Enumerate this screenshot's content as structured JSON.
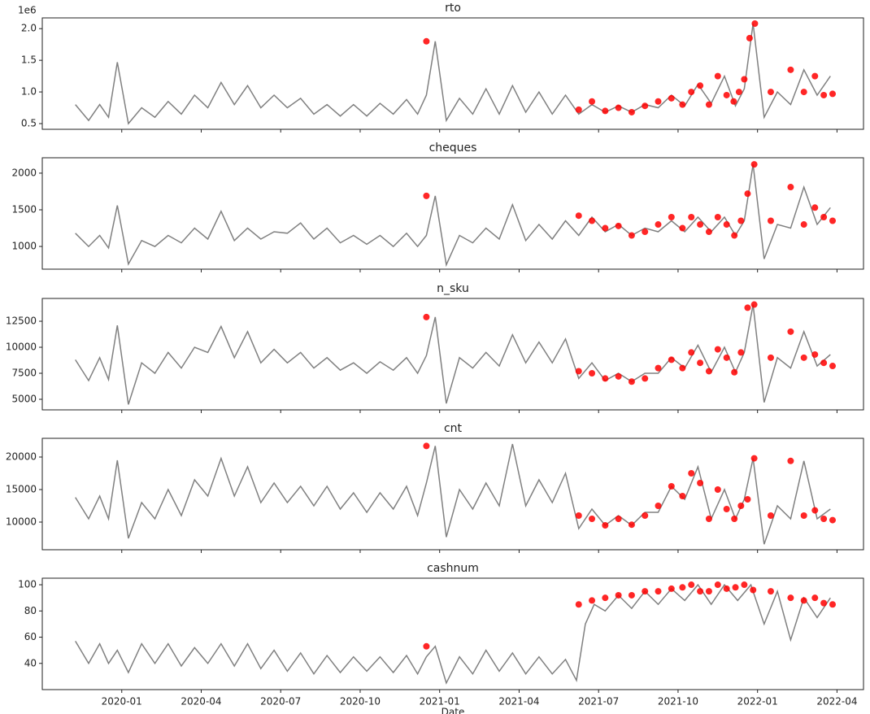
{
  "chart_data": [
    {
      "type": "line",
      "title": "rto",
      "y_offset_label": "1e6",
      "color": "#808080",
      "ylim": [
        0.41,
        2.17
      ],
      "yticks": [
        0.5,
        {
          "value": 1,
          "label": "1.0"
        },
        1.5,
        {
          "value": 2,
          "label": "2.0"
        }
      ],
      "x": [
        "2019-11",
        "2019-11",
        "2019-12",
        "2019-12",
        "2019-12",
        "2020-01",
        "2020-01",
        "2020-02",
        "2020-02",
        "2020-03",
        "2020-03",
        "2020-04",
        "2020-04",
        "2020-05",
        "2020-05",
        "2020-06",
        "2020-06",
        "2020-07",
        "2020-07",
        "2020-08",
        "2020-08",
        "2020-09",
        "2020-09",
        "2020-10",
        "2020-10",
        "2020-11",
        "2020-11",
        "2020-12",
        "2020-12",
        "2020-12",
        "2021-01",
        "2021-01",
        "2021-02",
        "2021-02",
        "2021-03",
        "2021-03",
        "2021-04",
        "2021-04",
        "2021-05",
        "2021-05",
        "2021-06",
        "2021-06",
        "2021-07",
        "2021-07",
        "2021-08",
        "2021-08",
        "2021-09",
        "2021-09",
        "2021-10",
        "2021-10",
        "2021-11",
        "2021-11",
        "2021-12",
        "2021-12",
        "2021-12",
        "2022-01",
        "2022-01",
        "2022-02",
        "2022-02",
        "2022-03",
        "2022-03"
      ],
      "values": [
        0.8,
        0.55,
        0.8,
        0.6,
        1.47,
        0.5,
        0.75,
        0.6,
        0.85,
        0.65,
        0.95,
        0.75,
        1.15,
        0.8,
        1.1,
        0.75,
        0.95,
        0.75,
        0.9,
        0.65,
        0.8,
        0.62,
        0.8,
        0.62,
        0.82,
        0.65,
        0.88,
        0.65,
        0.95,
        1.8,
        0.55,
        0.9,
        0.65,
        1.05,
        0.65,
        1.1,
        0.68,
        1.0,
        0.65,
        0.95,
        0.65,
        0.8,
        0.68,
        0.78,
        0.68,
        0.8,
        0.75,
        0.95,
        0.78,
        1.12,
        0.82,
        1.25,
        0.78,
        1.05,
        2.08,
        0.6,
        1.0,
        0.8,
        1.35,
        0.95,
        1.25
      ],
      "anomalies": {
        "color": "#ff0000",
        "x": [
          "2020-12",
          "2021-06",
          "2021-06",
          "2021-07",
          "2021-07",
          "2021-08",
          "2021-08",
          "2021-09",
          "2021-09",
          "2021-10",
          "2021-10",
          "2021-10",
          "2021-11",
          "2021-11",
          "2021-11",
          "2021-12",
          "2021-12",
          "2021-12",
          "2021-12",
          "2021-12",
          "2022-01",
          "2022-02",
          "2022-02",
          "2022-03",
          "2022-03",
          "2022-03"
        ],
        "values": [
          1.8,
          0.72,
          0.85,
          0.7,
          0.75,
          0.68,
          0.78,
          0.85,
          0.9,
          0.8,
          1.0,
          1.1,
          0.8,
          1.25,
          0.95,
          0.85,
          1.0,
          1.2,
          1.85,
          2.08,
          1.0,
          1.35,
          1.0,
          1.25,
          0.95,
          0.97
        ]
      }
    },
    {
      "type": "line",
      "title": "cheques",
      "color": "#808080",
      "ylim": [
        690,
        2210
      ],
      "yticks": [
        1000,
        1500,
        2000
      ],
      "x": [
        "2019-11",
        "2019-11",
        "2019-12",
        "2019-12",
        "2019-12",
        "2020-01",
        "2020-01",
        "2020-02",
        "2020-02",
        "2020-03",
        "2020-03",
        "2020-04",
        "2020-04",
        "2020-05",
        "2020-05",
        "2020-06",
        "2020-06",
        "2020-07",
        "2020-07",
        "2020-08",
        "2020-08",
        "2020-09",
        "2020-09",
        "2020-10",
        "2020-10",
        "2020-11",
        "2020-11",
        "2020-12",
        "2020-12",
        "2020-12",
        "2021-01",
        "2021-01",
        "2021-02",
        "2021-02",
        "2021-03",
        "2021-03",
        "2021-04",
        "2021-04",
        "2021-05",
        "2021-05",
        "2021-06",
        "2021-06",
        "2021-07",
        "2021-07",
        "2021-08",
        "2021-08",
        "2021-09",
        "2021-09",
        "2021-10",
        "2021-10",
        "2021-11",
        "2021-11",
        "2021-12",
        "2021-12",
        "2021-12",
        "2022-01",
        "2022-01",
        "2022-02",
        "2022-02",
        "2022-03",
        "2022-03"
      ],
      "values": [
        1180,
        1000,
        1150,
        980,
        1560,
        760,
        1080,
        1000,
        1150,
        1050,
        1250,
        1100,
        1480,
        1080,
        1250,
        1100,
        1200,
        1180,
        1320,
        1100,
        1250,
        1050,
        1150,
        1030,
        1150,
        1000,
        1180,
        1000,
        1150,
        1690,
        750,
        1150,
        1050,
        1250,
        1100,
        1570,
        1080,
        1300,
        1100,
        1350,
        1150,
        1400,
        1200,
        1300,
        1150,
        1250,
        1200,
        1350,
        1200,
        1400,
        1200,
        1400,
        1150,
        1350,
        2120,
        830,
        1300,
        1250,
        1810,
        1300,
        1530
      ],
      "anomalies": {
        "color": "#ff0000",
        "x": [
          "2020-12",
          "2021-06",
          "2021-06",
          "2021-07",
          "2021-07",
          "2021-08",
          "2021-08",
          "2021-09",
          "2021-09",
          "2021-10",
          "2021-10",
          "2021-10",
          "2021-11",
          "2021-11",
          "2021-11",
          "2021-12",
          "2021-12",
          "2021-12",
          "2021-12",
          "2022-01",
          "2022-02",
          "2022-02",
          "2022-03",
          "2022-03",
          "2022-03"
        ],
        "values": [
          1690,
          1420,
          1350,
          1250,
          1280,
          1150,
          1200,
          1300,
          1400,
          1250,
          1400,
          1300,
          1200,
          1400,
          1300,
          1150,
          1350,
          1720,
          2120,
          1350,
          1810,
          1300,
          1530,
          1400,
          1350
        ]
      }
    },
    {
      "type": "line",
      "title": "n_sku",
      "color": "#808080",
      "ylim": [
        3985,
        14690
      ],
      "yticks": [
        5000,
        7500,
        10000,
        12500
      ],
      "x": [
        "2019-11",
        "2019-11",
        "2019-12",
        "2019-12",
        "2019-12",
        "2020-01",
        "2020-01",
        "2020-02",
        "2020-02",
        "2020-03",
        "2020-03",
        "2020-04",
        "2020-04",
        "2020-05",
        "2020-05",
        "2020-06",
        "2020-06",
        "2020-07",
        "2020-07",
        "2020-08",
        "2020-08",
        "2020-09",
        "2020-09",
        "2020-10",
        "2020-10",
        "2020-11",
        "2020-11",
        "2020-12",
        "2020-12",
        "2020-12",
        "2021-01",
        "2021-01",
        "2021-02",
        "2021-02",
        "2021-03",
        "2021-03",
        "2021-04",
        "2021-04",
        "2021-05",
        "2021-05",
        "2021-06",
        "2021-06",
        "2021-07",
        "2021-07",
        "2021-08",
        "2021-08",
        "2021-09",
        "2021-09",
        "2021-10",
        "2021-10",
        "2021-11",
        "2021-11",
        "2021-12",
        "2021-12",
        "2021-12",
        "2022-01",
        "2022-01",
        "2022-02",
        "2022-02",
        "2022-03",
        "2022-03"
      ],
      "values": [
        8800,
        6800,
        9000,
        6900,
        12100,
        4500,
        8500,
        7500,
        9500,
        8000,
        10000,
        9500,
        12000,
        9000,
        11500,
        8500,
        9800,
        8500,
        9500,
        8000,
        9000,
        7800,
        8500,
        7500,
        8600,
        7800,
        9000,
        7500,
        9200,
        12900,
        4600,
        9000,
        8000,
        9500,
        8200,
        11200,
        8500,
        10500,
        8500,
        10800,
        7000,
        8500,
        6800,
        7500,
        6700,
        7500,
        7500,
        9000,
        8000,
        10200,
        7600,
        10000,
        7600,
        9500,
        14100,
        4700,
        9000,
        8000,
        11500,
        8200,
        9300
      ],
      "anomalies": {
        "color": "#ff0000",
        "x": [
          "2020-12",
          "2021-06",
          "2021-06",
          "2021-07",
          "2021-07",
          "2021-08",
          "2021-08",
          "2021-09",
          "2021-09",
          "2021-10",
          "2021-10",
          "2021-10",
          "2021-11",
          "2021-11",
          "2021-11",
          "2021-12",
          "2021-12",
          "2021-12",
          "2021-12",
          "2022-01",
          "2022-02",
          "2022-02",
          "2022-03",
          "2022-03",
          "2022-03"
        ],
        "values": [
          12900,
          7700,
          7500,
          7000,
          7200,
          6700,
          7000,
          8000,
          8800,
          8000,
          9500,
          8500,
          7700,
          9800,
          9000,
          7600,
          9500,
          13800,
          14100,
          9000,
          11500,
          9000,
          9300,
          8500,
          8200
        ]
      }
    },
    {
      "type": "line",
      "title": "cnt",
      "color": "#808080",
      "ylim": [
        5750,
        22875
      ],
      "yticks": [
        10000,
        15000,
        20000
      ],
      "x": [
        "2019-11",
        "2019-11",
        "2019-12",
        "2019-12",
        "2019-12",
        "2020-01",
        "2020-01",
        "2020-02",
        "2020-02",
        "2020-03",
        "2020-03",
        "2020-04",
        "2020-04",
        "2020-05",
        "2020-05",
        "2020-06",
        "2020-06",
        "2020-07",
        "2020-07",
        "2020-08",
        "2020-08",
        "2020-09",
        "2020-09",
        "2020-10",
        "2020-10",
        "2020-11",
        "2020-11",
        "2020-12",
        "2020-12",
        "2020-12",
        "2021-01",
        "2021-01",
        "2021-02",
        "2021-02",
        "2021-03",
        "2021-03",
        "2021-04",
        "2021-04",
        "2021-05",
        "2021-05",
        "2021-06",
        "2021-06",
        "2021-07",
        "2021-07",
        "2021-08",
        "2021-08",
        "2021-09",
        "2021-09",
        "2021-10",
        "2021-10",
        "2021-11",
        "2021-11",
        "2021-12",
        "2021-12",
        "2021-12",
        "2022-01",
        "2022-01",
        "2022-02",
        "2022-02",
        "2022-03",
        "2022-03"
      ],
      "values": [
        13800,
        10500,
        14000,
        10500,
        19500,
        7500,
        13000,
        10500,
        15000,
        11000,
        16500,
        14000,
        19800,
        14000,
        18500,
        13000,
        16000,
        13000,
        15500,
        12500,
        15500,
        12000,
        14500,
        11500,
        14500,
        12000,
        15500,
        11000,
        16000,
        21700,
        7700,
        15000,
        12000,
        16000,
        12500,
        22000,
        12500,
        16500,
        13000,
        17500,
        9000,
        12000,
        9500,
        11000,
        9500,
        11500,
        11500,
        15500,
        13500,
        18500,
        10500,
        15000,
        10500,
        13500,
        19800,
        6600,
        12500,
        10500,
        19400,
        10500,
        12000
      ],
      "anomalies": {
        "color": "#ff0000",
        "x": [
          "2020-12",
          "2021-06",
          "2021-06",
          "2021-07",
          "2021-07",
          "2021-08",
          "2021-08",
          "2021-09",
          "2021-09",
          "2021-10",
          "2021-10",
          "2021-10",
          "2021-11",
          "2021-11",
          "2021-11",
          "2021-12",
          "2021-12",
          "2021-12",
          "2021-12",
          "2022-01",
          "2022-02",
          "2022-02",
          "2022-03",
          "2022-03",
          "2022-03"
        ],
        "values": [
          21700,
          11000,
          10500,
          9500,
          10500,
          9600,
          11000,
          12500,
          15500,
          14000,
          17500,
          16000,
          10500,
          15000,
          12000,
          10500,
          12500,
          13500,
          19800,
          11000,
          19400,
          11000,
          11800,
          10500,
          10300
        ]
      }
    },
    {
      "type": "line",
      "title": "cashnum",
      "color": "#808080",
      "x_label": "Date",
      "ylim": [
        20,
        105
      ],
      "yticks": [
        40,
        60,
        80,
        100
      ],
      "xlim": [
        "2019-10",
        "2022-05"
      ],
      "xticks": [
        "2020-01",
        "2020-04",
        "2020-07",
        "2020-10",
        "2021-01",
        "2021-04",
        "2021-07",
        "2021-10",
        "2022-01",
        "2022-04"
      ],
      "x": [
        "2019-11",
        "2019-11",
        "2019-12",
        "2019-12",
        "2019-12",
        "2020-01",
        "2020-01",
        "2020-02",
        "2020-02",
        "2020-03",
        "2020-03",
        "2020-04",
        "2020-04",
        "2020-05",
        "2020-05",
        "2020-06",
        "2020-06",
        "2020-07",
        "2020-07",
        "2020-08",
        "2020-08",
        "2020-09",
        "2020-09",
        "2020-10",
        "2020-10",
        "2020-11",
        "2020-11",
        "2020-12",
        "2020-12",
        "2020-12",
        "2021-01",
        "2021-01",
        "2021-02",
        "2021-02",
        "2021-03",
        "2021-03",
        "2021-04",
        "2021-04",
        "2021-05",
        "2021-05",
        "2021-06",
        "2021-06",
        "2021-06",
        "2021-07",
        "2021-07",
        "2021-08",
        "2021-08",
        "2021-09",
        "2021-09",
        "2021-10",
        "2021-10",
        "2021-11",
        "2021-11",
        "2021-12",
        "2021-12",
        "2022-01",
        "2022-01",
        "2022-02",
        "2022-02",
        "2022-03",
        "2022-03"
      ],
      "values": [
        57,
        40,
        55,
        40,
        50,
        33,
        55,
        40,
        55,
        38,
        52,
        40,
        55,
        38,
        55,
        36,
        50,
        34,
        48,
        32,
        46,
        33,
        45,
        34,
        45,
        33,
        46,
        32,
        45,
        53,
        25,
        45,
        32,
        50,
        34,
        48,
        32,
        45,
        32,
        43,
        27,
        70,
        85,
        80,
        92,
        82,
        95,
        85,
        97,
        88,
        100,
        85,
        100,
        88,
        100,
        70,
        95,
        58,
        90,
        75,
        90
      ],
      "anomalies": {
        "color": "#ff0000",
        "x": [
          "2020-12",
          "2021-06",
          "2021-06",
          "2021-07",
          "2021-07",
          "2021-08",
          "2021-08",
          "2021-09",
          "2021-09",
          "2021-10",
          "2021-10",
          "2021-10",
          "2021-11",
          "2021-11",
          "2021-11",
          "2021-12",
          "2021-12",
          "2021-12",
          "2022-01",
          "2022-02",
          "2022-02",
          "2022-03",
          "2022-03",
          "2022-03"
        ],
        "values": [
          53,
          85,
          88,
          90,
          92,
          92,
          95,
          95,
          97,
          98,
          100,
          95,
          95,
          100,
          97,
          98,
          100,
          96,
          95,
          90,
          88,
          90,
          86,
          85
        ]
      }
    }
  ]
}
